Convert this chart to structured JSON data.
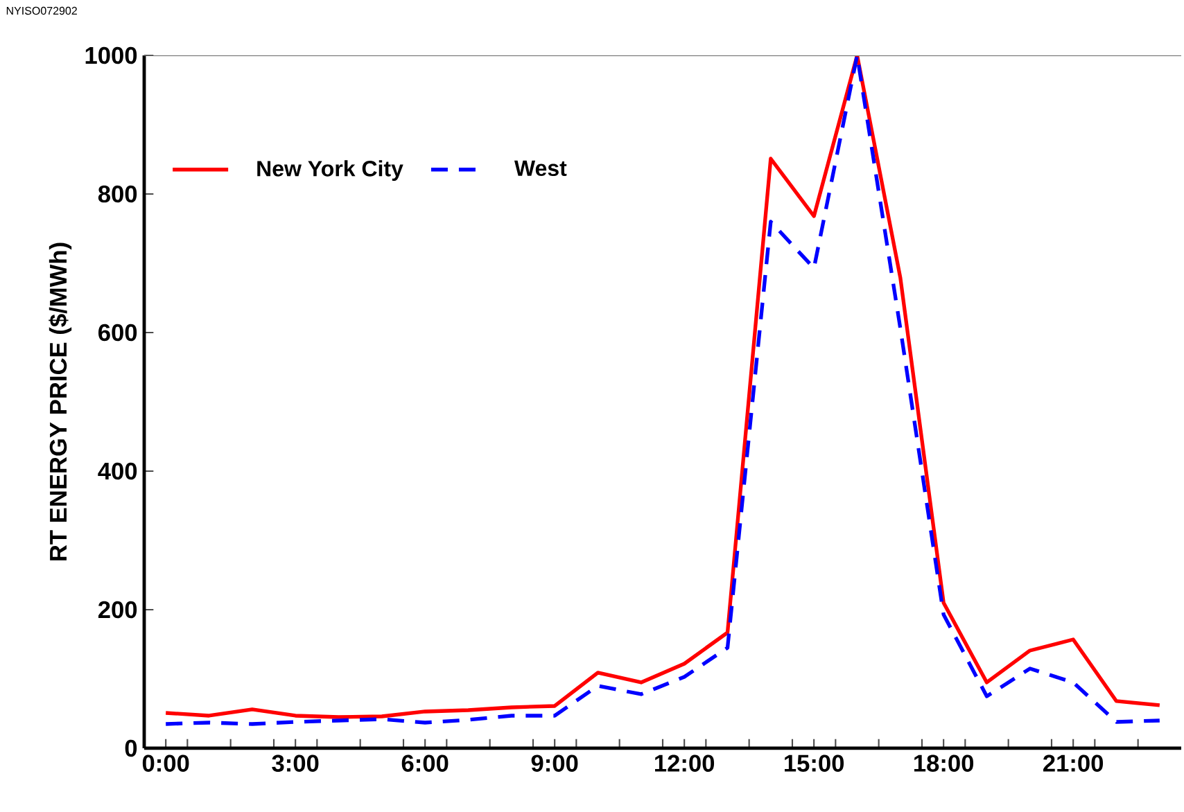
{
  "chart_data": {
    "type": "line",
    "ylabel": "RT ENERGY PRICE ($/MWh)",
    "annotations": [
      "NYISO072902"
    ],
    "x": [
      0,
      1,
      2,
      3,
      4,
      5,
      6,
      7,
      8,
      9,
      10,
      11,
      12,
      13,
      14,
      15,
      16,
      17,
      18,
      19,
      20,
      21,
      22,
      23
    ],
    "xlim": [
      -0.5,
      23.5
    ],
    "xticks": [
      {
        "value": 0,
        "label": "0:00"
      },
      {
        "value": 3,
        "label": "3:00"
      },
      {
        "value": 6,
        "label": "6:00"
      },
      {
        "value": 9,
        "label": "9:00"
      },
      {
        "value": 12,
        "label": "12:00"
      },
      {
        "value": 15,
        "label": "15:00"
      },
      {
        "value": 18,
        "label": "18:00"
      },
      {
        "value": 21,
        "label": "21:00"
      },
      {
        "value": 0.5,
        "label": null
      },
      {
        "value": 1.5,
        "label": null
      },
      {
        "value": 2.5,
        "label": null
      },
      {
        "value": 3.5,
        "label": null
      },
      {
        "value": 4.5,
        "label": null
      },
      {
        "value": 5.5,
        "label": null
      },
      {
        "value": 6.5,
        "label": null
      },
      {
        "value": 7.5,
        "label": null
      },
      {
        "value": 8.5,
        "label": null
      },
      {
        "value": 9.5,
        "label": null
      },
      {
        "value": 10.5,
        "label": null
      },
      {
        "value": 11.5,
        "label": null
      },
      {
        "value": 12.5,
        "label": null
      },
      {
        "value": 13.5,
        "label": null
      },
      {
        "value": 14.5,
        "label": null
      },
      {
        "value": 15.5,
        "label": null
      },
      {
        "value": 16.5,
        "label": null
      },
      {
        "value": 17.5,
        "label": null
      },
      {
        "value": 18.5,
        "label": null
      },
      {
        "value": 19.5,
        "label": null
      },
      {
        "value": 20.5,
        "label": null
      },
      {
        "value": 21.5,
        "label": null
      },
      {
        "value": 22.5,
        "label": null
      }
    ],
    "ylim": [
      0,
      1000
    ],
    "yticks": [
      0,
      200,
      400,
      600,
      800,
      1000
    ],
    "legend": "top left",
    "marker": "none",
    "grid": false,
    "series": [
      {
        "name": "New York City",
        "color": "#ff0000",
        "line_style": "solid",
        "values": [
          51,
          47,
          56,
          47,
          45,
          46,
          53,
          55,
          59,
          61,
          109,
          95,
          122,
          167,
          851,
          768,
          1000,
          679,
          210,
          95,
          141,
          157,
          68,
          62
        ]
      },
      {
        "name": "West",
        "color": "#0000ff",
        "line_style": "dashed",
        "values": [
          35,
          37,
          35,
          38,
          40,
          42,
          37,
          41,
          47,
          47,
          90,
          78,
          103,
          145,
          760,
          693,
          1000,
          606,
          193,
          75,
          115,
          95,
          38,
          40
        ]
      }
    ]
  }
}
